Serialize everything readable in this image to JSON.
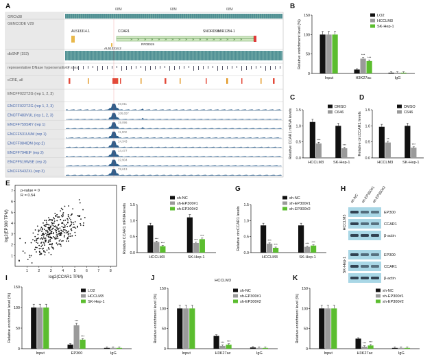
{
  "colors": {
    "black": "#111111",
    "grey": "#9a9a9a",
    "green": "#5bbd2f",
    "track_bg": "#4f8f94",
    "peak": "#2e5f8c",
    "wb_band": "#2b3a4a",
    "wb_bg": "#a9d7e6"
  },
  "panel_letters": [
    "A",
    "B",
    "C",
    "D",
    "E",
    "F",
    "G",
    "H",
    "I",
    "J",
    "K"
  ],
  "browser": {
    "tracks": [
      "GRCh38",
      "GENCODE V29",
      "dbSNP (153)",
      "representative DNase hypersensitivity sites",
      "cCRE, all",
      "ENCFF022TZG (rep 1, 2, 3)",
      "ENCFF483VUL (rep 1, 2, 3)",
      "ENCFF759SRY (rep 1)",
      "ENCFF531UUM (rep 1)",
      "ENCFF084IDM (rep 2)",
      "ENCFF794EIF (rep 2)",
      "ENCFF519WSE (rep 3)",
      "ENCFF543ZXL (rep 3)"
    ],
    "ruler_ticks": [
      "68M",
      "68M",
      "68M"
    ],
    "genes": [
      "AL513314.1",
      "CCAR1",
      "SNORD98",
      "MIR1254-1",
      "AL513314.2",
      "RF00019"
    ],
    "peak_values": [
      "23,011",
      "106,657",
      "19,096",
      "11,002",
      "14,343",
      "14,477",
      "22,904",
      "78,613"
    ]
  },
  "chart_data": [
    {
      "panel": "B",
      "type": "bar",
      "ylabel": "Relative enrichment level (%)",
      "ylim": [
        0,
        150
      ],
      "yticks": [
        "0",
        "50",
        "100",
        "150"
      ],
      "categories": [
        "Input",
        "H3K27ac",
        "IgG"
      ],
      "series": [
        {
          "name": "LO2",
          "values": [
            100,
            10,
            2
          ]
        },
        {
          "name": "HCCLM3",
          "values": [
            100,
            38,
            2
          ]
        },
        {
          "name": "SK-Hep-1",
          "values": [
            100,
            32,
            2
          ]
        }
      ],
      "stars": [
        "",
        "***",
        ""
      ]
    },
    {
      "panel": "C",
      "type": "bar",
      "ylabel": "Relative CCAR1 mRNA levels",
      "ylim": [
        0,
        1.5
      ],
      "yticks": [
        "0.0",
        "0.5",
        "1.0",
        "1.5"
      ],
      "categories": [
        "HCCLM3",
        "SK-Hep-1"
      ],
      "series": [
        {
          "name": "DMSO",
          "values": [
            1.12,
            1.0
          ]
        },
        {
          "name": "C646",
          "values": [
            0.45,
            0.3
          ]
        }
      ],
      "stars": [
        "***",
        "***"
      ]
    },
    {
      "panel": "D",
      "type": "bar",
      "ylabel": "Relative circCCAR1 levels",
      "ylim": [
        0,
        1.5
      ],
      "yticks": [
        "0.0",
        "0.5",
        "1.0",
        "1.5"
      ],
      "categories": [
        "HCCLM3",
        "SK-Hep-1"
      ],
      "series": [
        {
          "name": "DMSO",
          "values": [
            0.97,
            1.0
          ]
        },
        {
          "name": "C646",
          "values": [
            0.48,
            0.32
          ]
        }
      ],
      "stars": [
        "**",
        "***"
      ]
    },
    {
      "panel": "E",
      "type": "scatter",
      "xlabel": "log2(CCAR1 TPM)",
      "ylabel": "log2(EP300 TPM)",
      "annotation": [
        "p-value = 0",
        "R = 0.54"
      ],
      "xticks": [
        "1",
        "2",
        "3",
        "4",
        "5",
        "6",
        "7",
        "8"
      ],
      "yticks": [
        "1",
        "2",
        "3",
        "4",
        "5",
        "6",
        "7"
      ],
      "xlim": [
        0,
        8.5
      ],
      "ylim": [
        0,
        7.5
      ]
    },
    {
      "panel": "F",
      "type": "bar",
      "ylabel": "Relative CCAR1 mRNA levels",
      "ylim": [
        0,
        1.5
      ],
      "yticks": [
        "0.0",
        "0.5",
        "1.0",
        "1.5"
      ],
      "categories": [
        "HCCLM3",
        "SK-Hep-1"
      ],
      "series": [
        {
          "name": "sh-NC",
          "values": [
            0.85,
            1.1
          ]
        },
        {
          "name": "sh-EP300#1",
          "values": [
            0.33,
            0.3
          ]
        },
        {
          "name": "sh-EP300#2",
          "values": [
            0.2,
            0.42
          ]
        }
      ],
      "stars": [
        "***",
        "***"
      ]
    },
    {
      "panel": "G",
      "type": "bar",
      "ylabel": "Relative circCCAR1 levels",
      "ylim": [
        0,
        1.5
      ],
      "yticks": [
        "0.0",
        "0.5",
        "1.0",
        "1.5"
      ],
      "categories": [
        "HCCLM3",
        "SK-Hep-1"
      ],
      "series": [
        {
          "name": "sh-NC",
          "values": [
            0.85,
            0.85
          ]
        },
        {
          "name": "sh-EP300#1",
          "values": [
            0.28,
            0.18
          ]
        },
        {
          "name": "sh-EP300#2",
          "values": [
            0.15,
            0.22
          ]
        }
      ],
      "stars": [
        "***",
        "***"
      ]
    },
    {
      "panel": "I",
      "type": "bar",
      "ylabel": "Relative enrichment level (%)",
      "ylim": [
        0,
        150
      ],
      "yticks": [
        "0",
        "50",
        "100",
        "150"
      ],
      "categories": [
        "Input",
        "EP300",
        "IgG"
      ],
      "series": [
        {
          "name": "LO2",
          "values": [
            100,
            10,
            2
          ]
        },
        {
          "name": "HCCLM3",
          "values": [
            100,
            57,
            2
          ]
        },
        {
          "name": "SK-Hep-1",
          "values": [
            100,
            22,
            2
          ]
        }
      ],
      "stars": [
        "",
        "***",
        ""
      ]
    },
    {
      "panel": "J",
      "type": "bar",
      "title": "HCCLM3",
      "ylabel": "Relative enrichment level (%)",
      "ylim": [
        0,
        150
      ],
      "yticks": [
        "0",
        "50",
        "100",
        "150"
      ],
      "categories": [
        "Input",
        "H3K27ac",
        "IgG"
      ],
      "series": [
        {
          "name": "sh-NC",
          "values": [
            100,
            32,
            3
          ]
        },
        {
          "name": "sh-EP300#1",
          "values": [
            100,
            7,
            2
          ]
        },
        {
          "name": "sh-EP300#2",
          "values": [
            100,
            10,
            2
          ]
        }
      ],
      "stars": [
        "",
        "***",
        ""
      ]
    },
    {
      "panel": "K",
      "type": "bar",
      "title": "SK-Hep-1",
      "ylabel": "Relative enrichment level (%)",
      "ylim": [
        0,
        150
      ],
      "yticks": [
        "0",
        "50",
        "100",
        "150"
      ],
      "categories": [
        "Input",
        "H3K27ac",
        "IgG"
      ],
      "series": [
        {
          "name": "sh-NC",
          "values": [
            100,
            25,
            2
          ]
        },
        {
          "name": "sh-EP300#1",
          "values": [
            100,
            5,
            2
          ]
        },
        {
          "name": "sh-EP300#2",
          "values": [
            100,
            8,
            2
          ]
        }
      ],
      "stars": [
        "",
        "***",
        ""
      ]
    }
  ],
  "western": {
    "lanes": [
      "sh-NC",
      "sh-EP300#1",
      "sh-EP300#2"
    ],
    "cells": [
      "HCCLM3",
      "SK-Hep-1"
    ],
    "bands": [
      "EP300",
      "CCAR1",
      "β-actin"
    ]
  }
}
